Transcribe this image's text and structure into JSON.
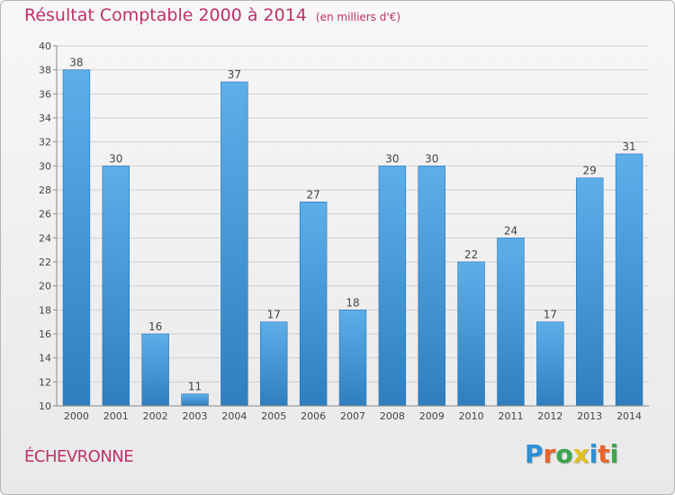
{
  "title": "Résultat Comptable 2000 à 2014",
  "subtitle": "(en milliers d'€)",
  "commune": "ÉCHEVRONNE",
  "brand": {
    "letters": [
      "P",
      "r",
      "o",
      "x",
      "i",
      "t",
      "i"
    ],
    "colors": [
      "#2d8fd6",
      "#e8632b",
      "#3aa64a",
      "#e0c21c",
      "#2d8fd6",
      "#e8632b",
      "#3aa64a"
    ]
  },
  "colors": {
    "bar_top": "#5daee9",
    "bar_bottom": "#2f7fc0",
    "title": "#c0306a",
    "grid": "#cfcfcf",
    "axis_text": "#444444"
  },
  "chart_data": {
    "type": "bar",
    "title": "Résultat Comptable 2000 à 2014",
    "subtitle": "(en milliers d'€)",
    "categories": [
      "2000",
      "2001",
      "2002",
      "2003",
      "2004",
      "2005",
      "2006",
      "2007",
      "2008",
      "2009",
      "2010",
      "2011",
      "2012",
      "2013",
      "2014"
    ],
    "values": [
      38,
      30,
      16,
      11,
      37,
      17,
      27,
      18,
      30,
      30,
      22,
      24,
      17,
      29,
      31
    ],
    "xlabel": "",
    "ylabel": "",
    "ylim": [
      10,
      40
    ],
    "yticks": [
      10,
      12,
      14,
      16,
      18,
      20,
      22,
      24,
      26,
      28,
      30,
      32,
      34,
      36,
      38,
      40
    ],
    "grid": true
  }
}
